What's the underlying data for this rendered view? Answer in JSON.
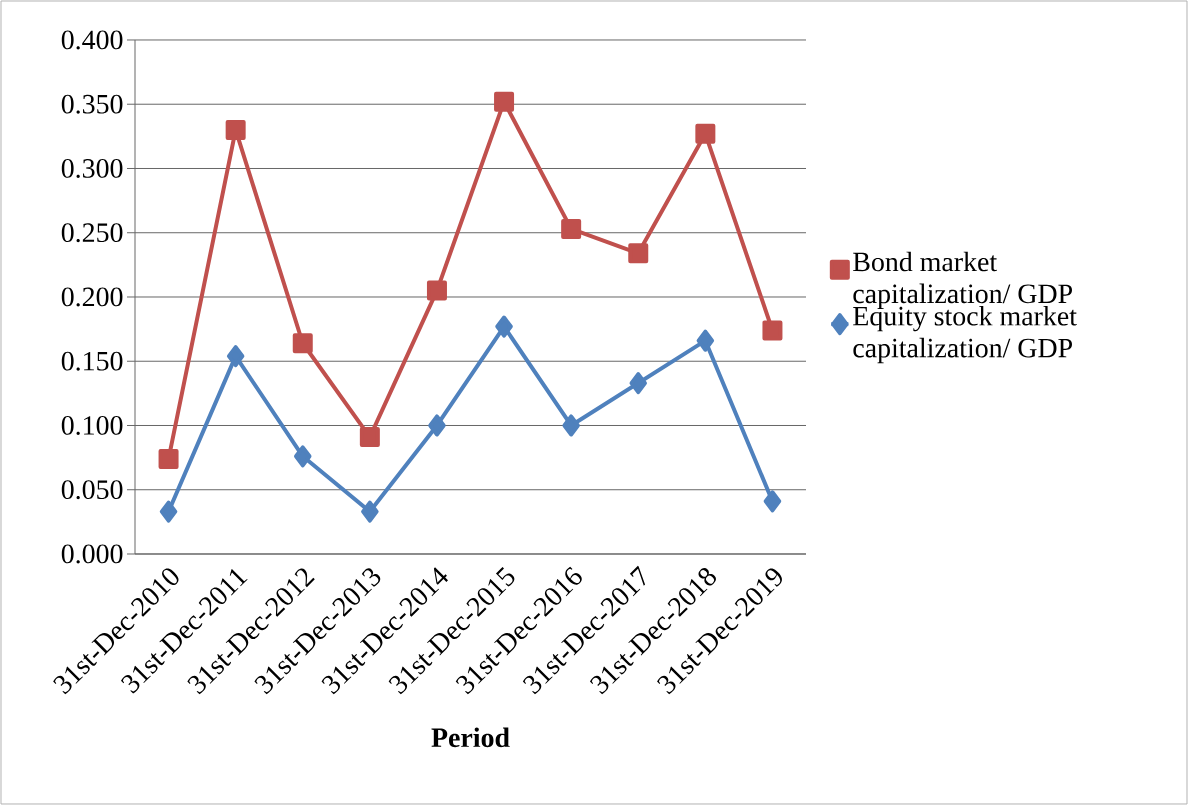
{
  "chart_data": {
    "type": "line",
    "xlabel": "Period",
    "categories": [
      "31st-Dec-2010",
      "31st-Dec-2011",
      "31st-Dec-2012",
      "31st-Dec-2013",
      "31st-Dec-2014",
      "31st-Dec-2015",
      "31st-Dec-2016",
      "31st-Dec-2017",
      "31st-Dec-2018",
      "31st-Dec-2019"
    ],
    "series": [
      {
        "name": "Bond  market capitalization/ GDP",
        "color": "#c0504d",
        "marker": "square",
        "values": [
          0.074,
          0.33,
          0.164,
          0.091,
          0.205,
          0.352,
          0.253,
          0.234,
          0.327,
          0.174
        ]
      },
      {
        "name": "Equity stock market capitalization/ GDP",
        "color": "#4f81bd",
        "marker": "diamond",
        "values": [
          0.033,
          0.154,
          0.076,
          0.033,
          0.1,
          0.177,
          0.1,
          0.133,
          0.166,
          0.041
        ]
      }
    ],
    "ylim": [
      0,
      0.4
    ],
    "yticks": [
      {
        "value": 0,
        "label": "0.000"
      },
      {
        "value": 0.05,
        "label": "0.050"
      },
      {
        "value": 0.1,
        "label": "0.100"
      },
      {
        "value": 0.15,
        "label": "0.150"
      },
      {
        "value": 0.2,
        "label": "0.200"
      },
      {
        "value": 0.25,
        "label": "0.250"
      },
      {
        "value": 0.3,
        "label": "0.300"
      },
      {
        "value": 0.35,
        "label": "0.350"
      },
      {
        "value": 0.4,
        "label": "0.400"
      }
    ],
    "grid": "y",
    "legend": "right",
    "line_style": "solid"
  }
}
